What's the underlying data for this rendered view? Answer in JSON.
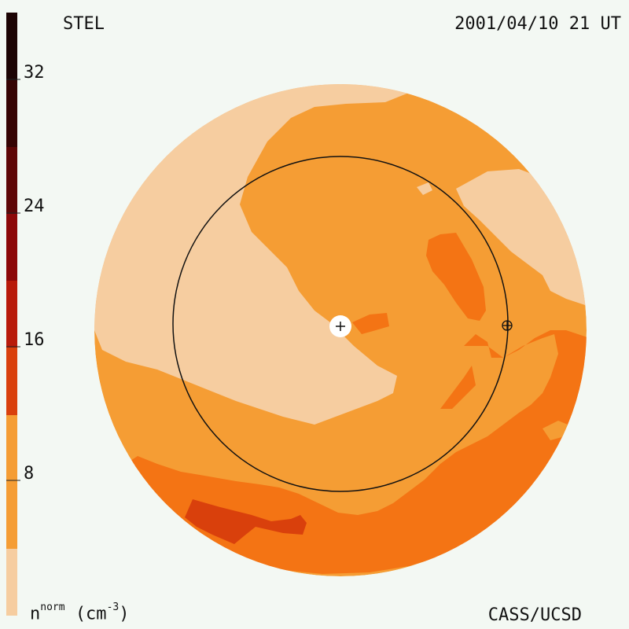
{
  "header": {
    "station": "STEL",
    "datetime": "2001/04/10 21 UT"
  },
  "footer": {
    "credit": "CASS/UCSD"
  },
  "legend": {
    "quantity": "n",
    "superscript": "norm",
    "unit_text": "(cm",
    "unit_power": "-3",
    "unit_close": ")",
    "ticks": [
      "32",
      "24",
      "16",
      "8"
    ],
    "color_bins": [
      {
        "from": 0,
        "to": 4,
        "color": "#f6cda0"
      },
      {
        "from": 4,
        "to": 8,
        "color": "#f59d34"
      },
      {
        "from": 8,
        "to": 12,
        "color": "#f47414"
      },
      {
        "from": 12,
        "to": 16,
        "color": "#d9400c"
      },
      {
        "from": 16,
        "to": 20,
        "color": "#b81a0a"
      },
      {
        "from": 20,
        "to": 24,
        "color": "#8c0808"
      },
      {
        "from": 24,
        "to": 28,
        "color": "#5e0606"
      },
      {
        "from": 28,
        "to": 32,
        "color": "#360404"
      },
      {
        "from": 32,
        "to": 36,
        "color": "#1c0404"
      }
    ]
  },
  "map": {
    "symbols": {
      "sun": "sun-marker-plus",
      "earth": "earth-symbol-circled-plus"
    }
  }
}
